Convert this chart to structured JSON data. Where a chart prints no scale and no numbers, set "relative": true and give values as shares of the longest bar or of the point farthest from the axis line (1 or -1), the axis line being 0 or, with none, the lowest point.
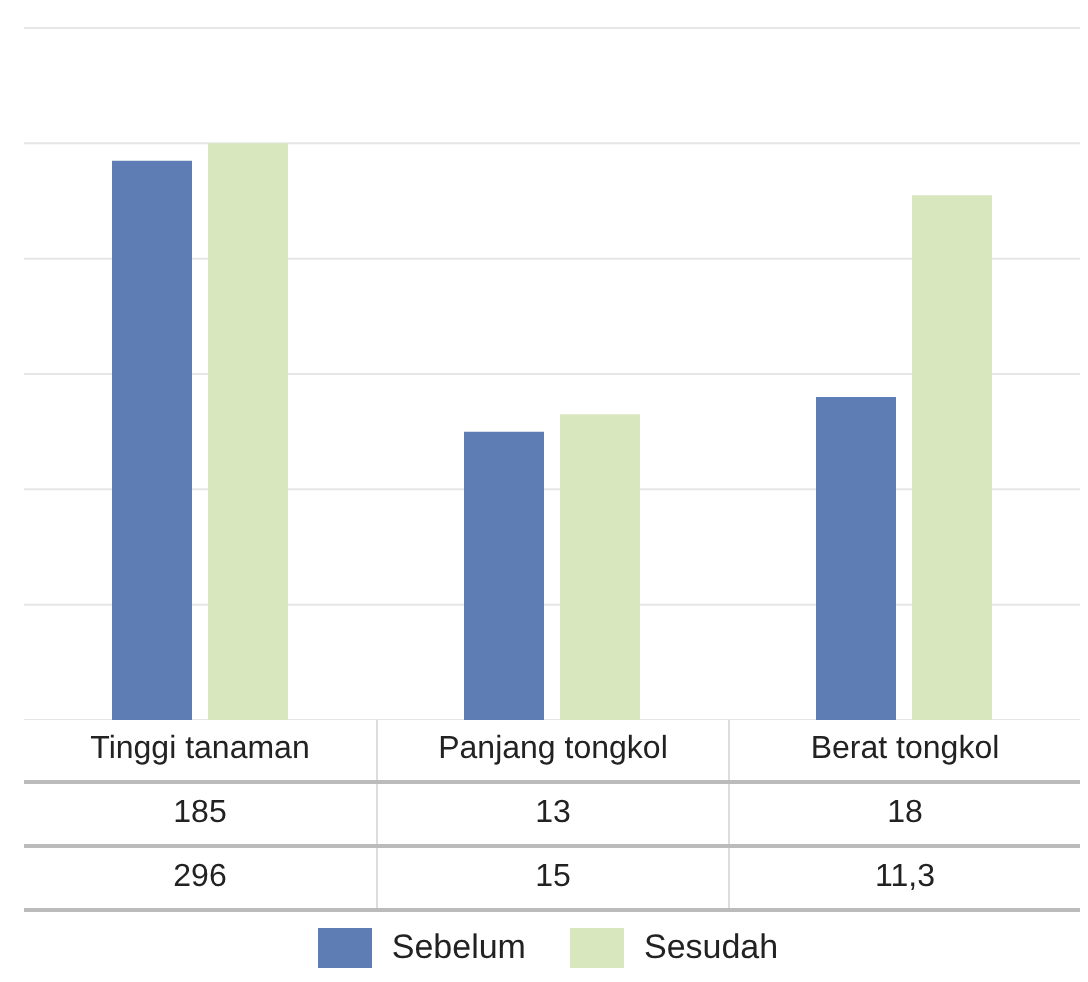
{
  "chart_data": {
    "type": "bar",
    "relative": true,
    "categories": [
      "Tinggi tanaman",
      "Panjang tongkol",
      "Berat tongkol"
    ],
    "series": [
      {
        "name": "Sebelum",
        "color": "#5f7db5",
        "values": [
          0.97,
          0.5,
          0.56
        ]
      },
      {
        "name": "Sesudah",
        "color": "#d8e7bd",
        "values": [
          1,
          0.53,
          0.91
        ]
      }
    ],
    "annotations": [
      "185",
      "13",
      "18",
      "296",
      "15",
      "11,3"
    ],
    "grid": "y",
    "legend": "bottom"
  }
}
